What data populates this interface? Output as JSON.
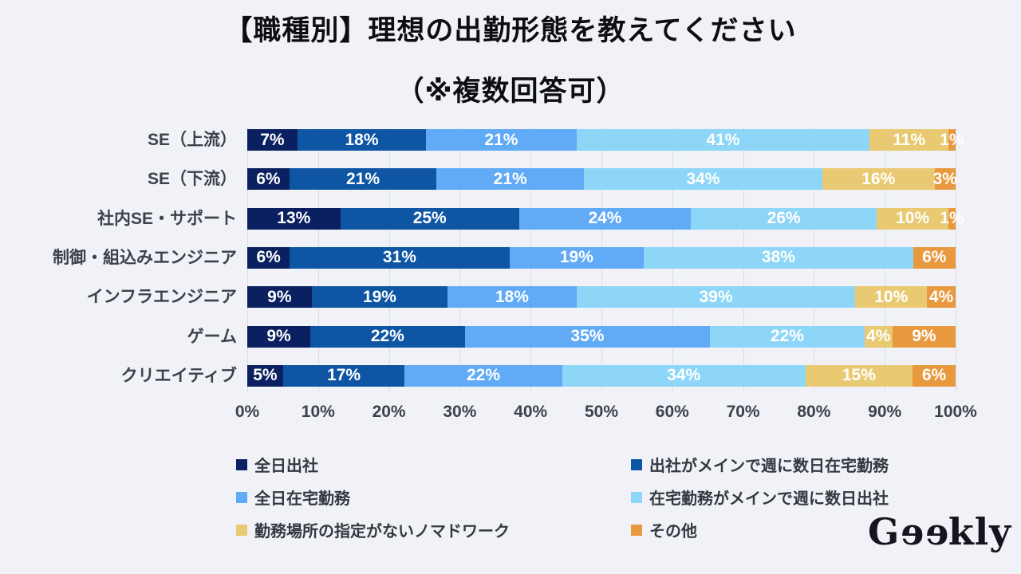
{
  "title": {
    "line1": "【職種別】理想の出勤形態を教えてください",
    "line2": "（※複数回答可）"
  },
  "chart_data": {
    "type": "bar",
    "variant": "horizontal-stacked-percent",
    "title": "【職種別】理想の出勤形態を教えてください",
    "subtitle": "（※複数回答可）",
    "categories": [
      "SE（上流）",
      "SE（下流）",
      "社内SE・サポート",
      "制御・組込みエンジニア",
      "インフラエンジニア",
      "ゲーム",
      "クリエイティブ"
    ],
    "series": [
      {
        "name": "全日出社",
        "color": "#0b2060",
        "values": [
          7,
          6,
          13,
          6,
          9,
          9,
          5
        ]
      },
      {
        "name": "出社がメインで週に数日在宅勤務",
        "color": "#0e55a4",
        "values": [
          18,
          21,
          25,
          31,
          19,
          22,
          17
        ]
      },
      {
        "name": "全日在宅勤務",
        "color": "#60aaf6",
        "values": [
          21,
          21,
          24,
          19,
          18,
          35,
          22
        ]
      },
      {
        "name": "在宅勤務がメインで週に数日出社",
        "color": "#8dd6f7",
        "values": [
          41,
          34,
          26,
          38,
          39,
          22,
          34
        ]
      },
      {
        "name": "勤務場所の指定がないノマドワーク",
        "color": "#e9ca72",
        "values": [
          11,
          16,
          10,
          0,
          10,
          4,
          15
        ]
      },
      {
        "name": "その他",
        "color": "#e9993d",
        "values": [
          1,
          3,
          1,
          6,
          4,
          9,
          6
        ]
      }
    ],
    "x_ticks": [
      "0%",
      "10%",
      "20%",
      "30%",
      "40%",
      "50%",
      "60%",
      "70%",
      "80%",
      "90%",
      "100%"
    ],
    "xlim": [
      0,
      100
    ],
    "value_suffix": "%",
    "grid": true,
    "legend_position": "bottom"
  },
  "colors": {
    "background": "#f0f2f7",
    "gridline": "#d9dce3",
    "axis_text": "#3d414a",
    "bar_label_text": "#ffffff",
    "title_text": "#0c0e13"
  },
  "logo": {
    "text": "Geekly"
  }
}
